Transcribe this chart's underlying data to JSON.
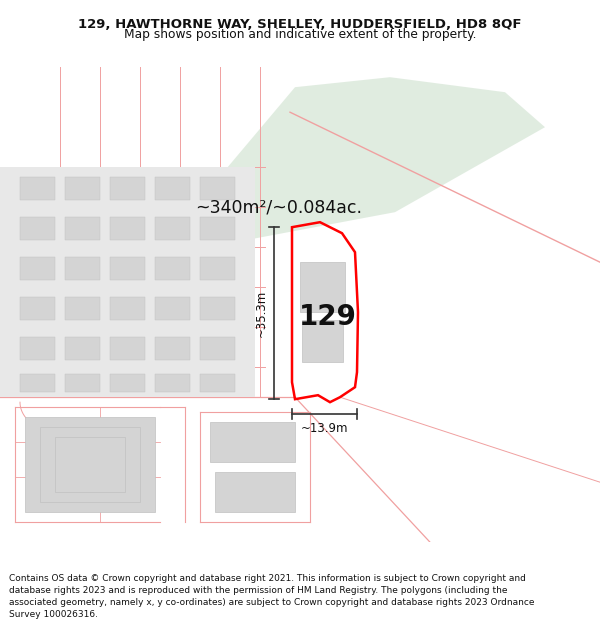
{
  "title": "129, HAWTHORNE WAY, SHELLEY, HUDDERSFIELD, HD8 8QF",
  "subtitle": "Map shows position and indicative extent of the property.",
  "copyright": "Contains OS data © Crown copyright and database right 2021. This information is subject to Crown copyright and database rights 2023 and is reproduced with the permission of HM Land Registry. The polygons (including the associated geometry, namely x, y co-ordinates) are subject to Crown copyright and database rights 2023 Ordnance Survey 100026316.",
  "area_label": "~340m²/~0.084ac.",
  "dim_vertical": "~35.3m",
  "dim_horizontal": "~13.9m",
  "property_number": "129",
  "background_color": "#ffffff",
  "green_fill": "#c8ddc8",
  "red_color": "#ff0000",
  "pink_color": "#f0a0a0",
  "gray_building": "#d4d4d4",
  "gray_outline": "#c0c0c0",
  "figsize": [
    6.0,
    6.25
  ],
  "dpi": 100,
  "title_fontsize": 9.5,
  "subtitle_fontsize": 8.8,
  "copyright_fontsize": 6.5
}
